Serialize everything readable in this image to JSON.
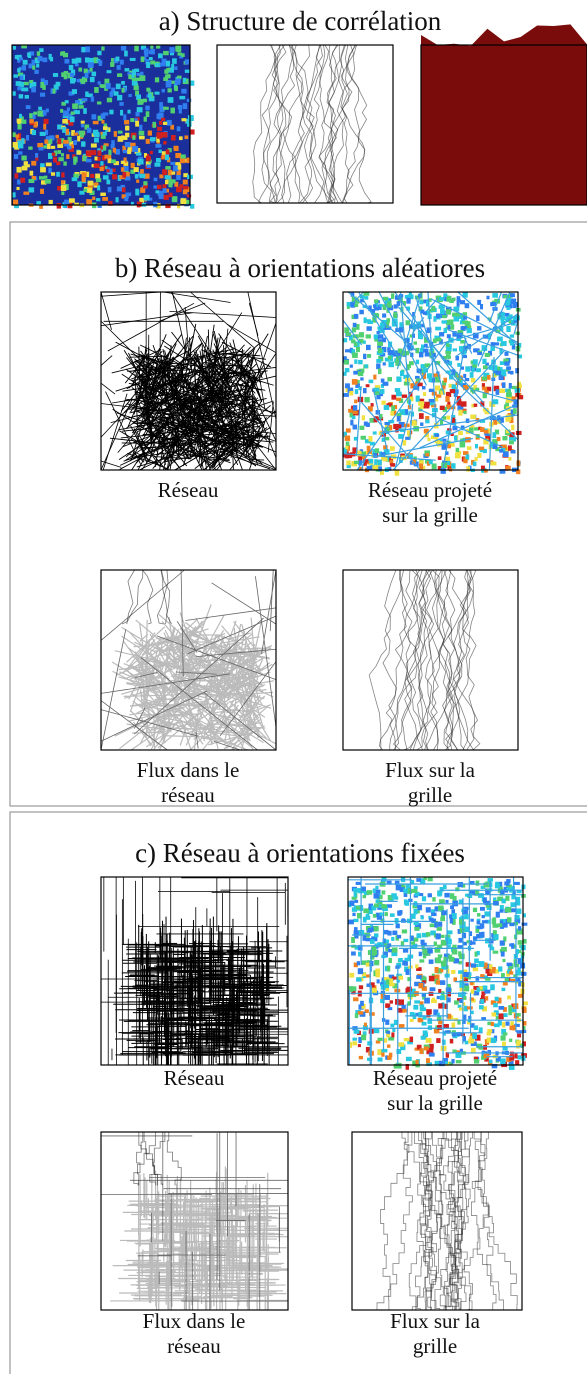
{
  "panels": [
    {
      "title": "a) Structure de corrélation"
    },
    {
      "title": "b) Réseau à orientations aléatiores",
      "captions": [
        [
          "Réseau"
        ],
        [
          "Réseau projeté",
          "sur la grille"
        ],
        [
          "Flux dans le",
          "réseau"
        ],
        [
          "Flux sur la",
          "grille"
        ]
      ]
    },
    {
      "title": "c) Réseau à orientations fixées",
      "captions": [
        [
          "Réseau"
        ],
        [
          "Réseau projeté",
          "sur la grille"
        ],
        [
          "Flux dans le",
          "réseau"
        ],
        [
          "Flux sur la",
          "grille"
        ]
      ]
    }
  ]
}
